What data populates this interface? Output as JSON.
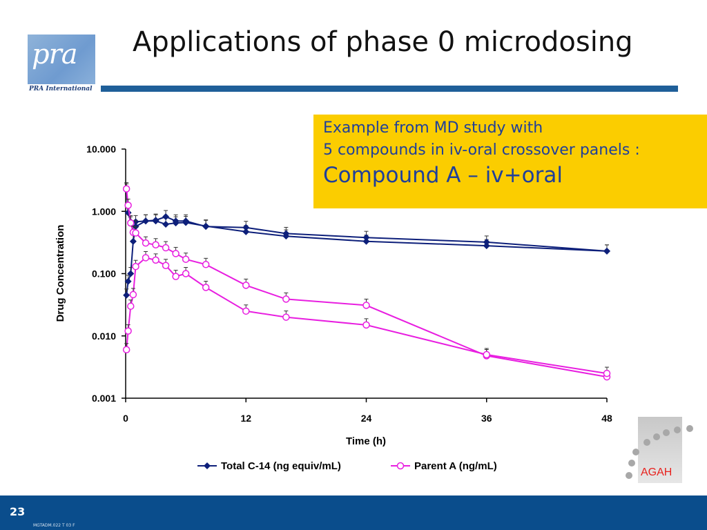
{
  "title": "Applications of phase 0 microdosing",
  "logo": {
    "text": "pra",
    "caption": "PRA International"
  },
  "callout": {
    "line1": "Example from MD study with",
    "line2": "5 compounds in iv-oral crossover panels :",
    "line3": "Compound A – iv+oral"
  },
  "footer": {
    "page_number": "23",
    "code": "MGTADM.022 T 03 F"
  },
  "agah_logo": {
    "text": "AGAH"
  },
  "colors": {
    "series1": "#0d1f7a",
    "series2": "#e81ee0",
    "accent_bar": "#1f5f99",
    "callout_bg": "#fbcd00",
    "footer_bg": "#0a4d8c"
  },
  "chart_data": {
    "type": "line",
    "xlabel": "Time (h)",
    "ylabel": "Drug Concentration",
    "xlim": [
      0,
      48
    ],
    "ylim": [
      0.001,
      10
    ],
    "yscale": "log",
    "xticks": [
      0,
      12,
      24,
      36,
      48
    ],
    "yticks": [
      0.001,
      0.01,
      0.1,
      1,
      10
    ],
    "ytick_labels": [
      "0.001",
      "0.010",
      "0.100",
      "1.000",
      "10.000"
    ],
    "legend_position": "bottom",
    "series": [
      {
        "name": "Total C-14 (ng equiv/mL)",
        "marker": "diamond",
        "x": [
          0.08,
          0.25,
          0.5,
          1,
          2,
          3,
          4,
          5,
          6,
          8,
          12,
          16,
          24,
          36,
          48
        ],
        "y": [
          2.2,
          0.95,
          0.68,
          0.68,
          0.7,
          0.7,
          0.62,
          0.65,
          0.66,
          0.58,
          0.47,
          0.4,
          0.33,
          0.28,
          0.23
        ]
      },
      {
        "name": "Total C-14 (ng equiv/mL)",
        "marker": "diamond",
        "x": [
          0.08,
          0.25,
          0.5,
          0.75,
          1,
          2,
          3,
          4,
          5,
          6,
          8,
          12,
          16,
          24,
          36,
          48
        ],
        "y": [
          0.045,
          0.075,
          0.1,
          0.33,
          0.57,
          0.7,
          0.72,
          0.82,
          0.7,
          0.7,
          0.57,
          0.55,
          0.44,
          0.38,
          0.32,
          0.23
        ]
      },
      {
        "name": "Parent A (ng/mL)",
        "marker": "circle",
        "x": [
          0.08,
          0.25,
          0.5,
          0.75,
          1,
          2,
          3,
          4,
          5,
          6,
          8,
          12,
          16,
          24,
          36,
          48
        ],
        "y": [
          2.3,
          1.25,
          0.65,
          0.46,
          0.45,
          0.31,
          0.29,
          0.26,
          0.21,
          0.17,
          0.14,
          0.065,
          0.039,
          0.031,
          0.0048,
          0.0022
        ]
      },
      {
        "name": "Parent A (ng/mL)",
        "marker": "circle",
        "x": [
          0.08,
          0.25,
          0.5,
          0.75,
          1,
          2,
          3,
          4,
          5,
          6,
          8,
          12,
          16,
          24,
          36,
          48
        ],
        "y": [
          0.006,
          0.012,
          0.03,
          0.046,
          0.13,
          0.18,
          0.165,
          0.135,
          0.09,
          0.1,
          0.06,
          0.025,
          0.02,
          0.015,
          0.005,
          0.0025
        ]
      }
    ]
  }
}
